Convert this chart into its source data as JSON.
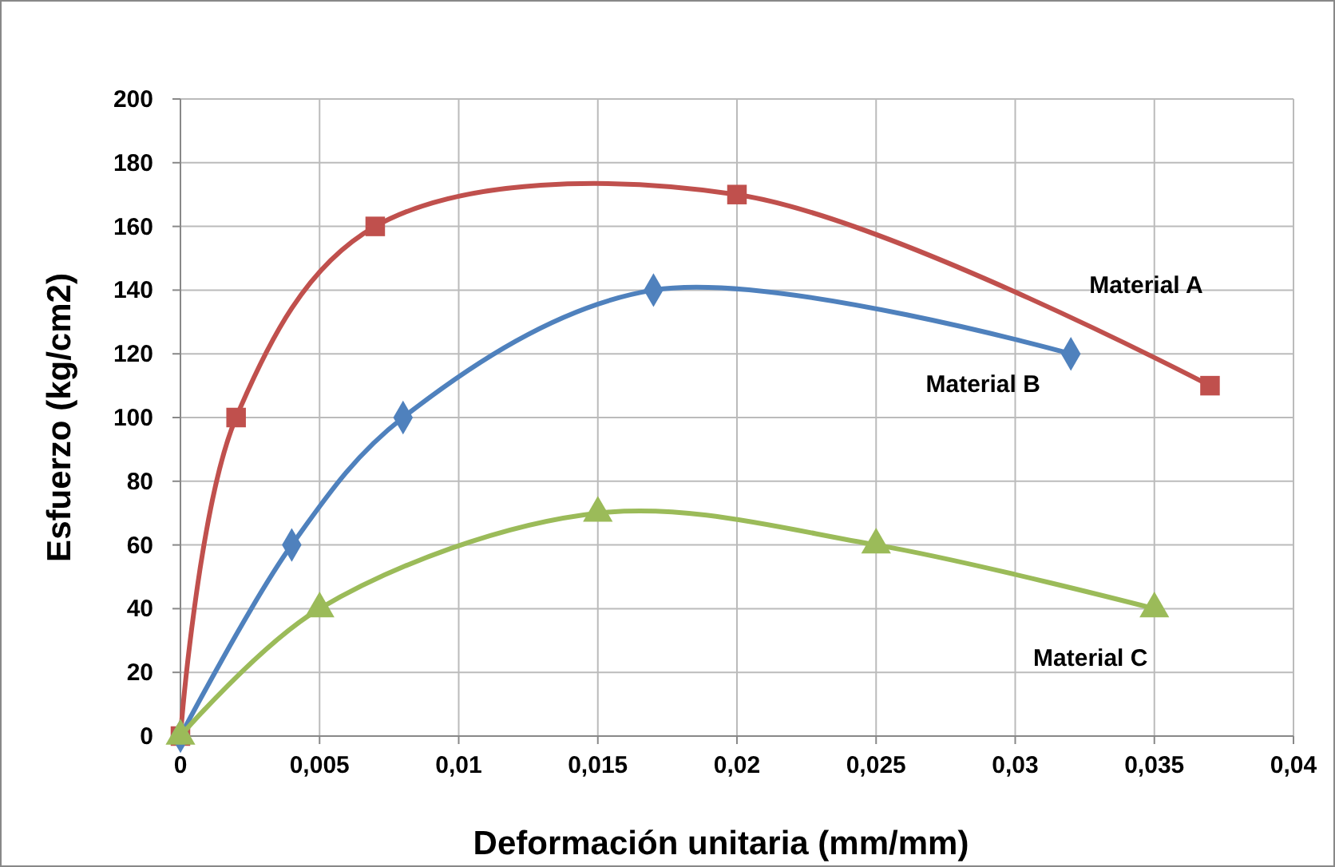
{
  "chart_data": {
    "type": "line",
    "xlabel": "Deformación unitaria (mm/mm)",
    "ylabel": "Esfuerzo (kg/cm2)",
    "xlim": [
      0,
      0.04
    ],
    "xticks": [
      0,
      {
        "value": 0.005,
        "label": "0,005"
      },
      {
        "value": 0.01,
        "label": "0,01"
      },
      {
        "value": 0.015,
        "label": "0,015"
      },
      {
        "value": 0.02,
        "label": "0,02"
      },
      {
        "value": 0.025,
        "label": "0,025"
      },
      {
        "value": 0.03,
        "label": "0,03"
      },
      {
        "value": 0.035,
        "label": "0,035"
      },
      {
        "value": 0.04,
        "label": "0,04"
      }
    ],
    "ylim": [
      0,
      200
    ],
    "yticks": [
      0,
      20,
      40,
      60,
      80,
      100,
      120,
      140,
      160,
      180,
      200
    ],
    "grid": true,
    "series": [
      {
        "name": "Material A",
        "color": "#c0504d",
        "marker": "square",
        "x": [
          0,
          0.002,
          0.007,
          0.02,
          0.037
        ],
        "values": [
          0,
          100,
          160,
          170,
          110
        ]
      },
      {
        "name": "Material B",
        "color": "#4f81bd",
        "marker": "diamond",
        "x": [
          0,
          0.004,
          0.008,
          0.017,
          0.032
        ],
        "values": [
          0,
          60,
          100,
          140,
          120
        ]
      },
      {
        "name": "Material C",
        "color": "#9bbb59",
        "marker": "triangle",
        "x": [
          0,
          0.005,
          0.015,
          0.025,
          0.035
        ],
        "values": [
          0,
          40,
          70,
          60,
          40
        ]
      }
    ]
  }
}
